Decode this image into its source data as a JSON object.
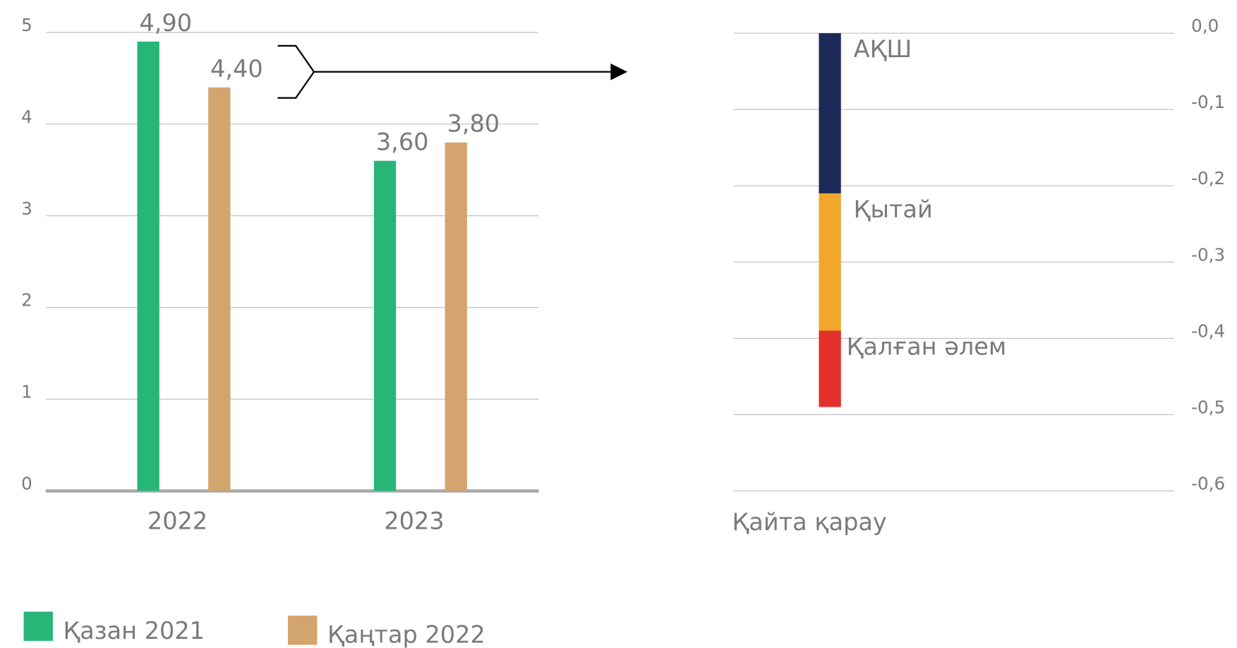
{
  "chart_data": [
    {
      "type": "bar",
      "categories": [
        "2022",
        "2023"
      ],
      "series": [
        {
          "name": "Қазан 2021",
          "color": "#27b678",
          "values": [
            4.9,
            3.6
          ],
          "value_labels": [
            "4,90",
            "3,60"
          ]
        },
        {
          "name": "Қаңтар 2022",
          "color": "#d4a46e",
          "values": [
            4.4,
            3.8
          ],
          "value_labels": [
            "4,40",
            "3,80"
          ]
        }
      ],
      "ylim": [
        0,
        5
      ],
      "yticks": [
        0,
        1,
        2,
        3,
        4,
        5
      ],
      "grid": true,
      "legend": "bottom"
    },
    {
      "type": "stacked_bar",
      "categories": [
        "Қайта қарау"
      ],
      "series": [
        {
          "name": "АҚШ",
          "color": "#1e2b58",
          "values": [
            -0.21
          ]
        },
        {
          "name": "Қытай",
          "color": "#f0a72c",
          "values": [
            -0.18
          ]
        },
        {
          "name": "Қалған әлем",
          "color": "#e2302c",
          "values": [
            -0.1
          ]
        }
      ],
      "ylim": [
        -0.6,
        0
      ],
      "yticks": [
        {
          "value": 0,
          "label": "0,0"
        },
        {
          "value": -0.1,
          "label": "-0,1"
        },
        {
          "value": -0.2,
          "label": "-0,2"
        },
        {
          "value": -0.3,
          "label": "-0,3"
        },
        {
          "value": -0.4,
          "label": "-0,4"
        },
        {
          "value": -0.5,
          "label": "-0,5"
        },
        {
          "value": -0.6,
          "label": "-0,6"
        }
      ],
      "grid": true
    }
  ]
}
